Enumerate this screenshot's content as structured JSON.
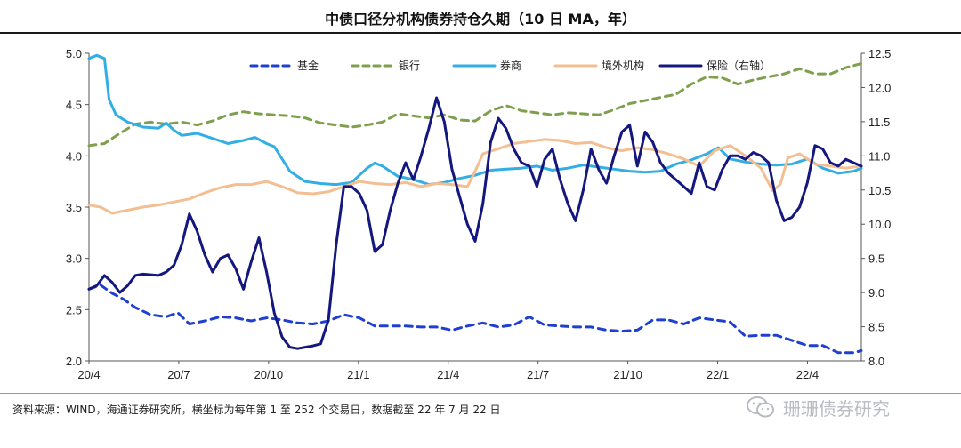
{
  "page": {
    "title": "中债口径分机构债券持仓久期（10 日 MA，年）",
    "source": "资料来源：WIND，海通证券研究所，横坐标为每年第 1 至 252 个交易日，数据截至 22 年 7 月 22 日",
    "watermark": "珊珊债券研究",
    "watermark_icon": "wechat-icon"
  },
  "chart_data": {
    "type": "line",
    "title": "中债口径分机构债券持仓久期（10 日 MA，年）",
    "xlabel": "",
    "ylabel": "",
    "x_ticks": [
      "20/4",
      "20/7",
      "20/10",
      "21/1",
      "21/4",
      "21/7",
      "21/10",
      "22/1",
      "22/4"
    ],
    "x_range": [
      0,
      100
    ],
    "ylim": [
      2.0,
      5.0
    ],
    "y_ticks": [
      "5.0",
      "4.5",
      "4.0",
      "3.5",
      "3.0",
      "2.5",
      "2.0"
    ],
    "y2lim": [
      8.0,
      12.5
    ],
    "y2_ticks": [
      "12.5",
      "12.0",
      "11.5",
      "11.0",
      "10.5",
      "10.0",
      "9.5",
      "9.0",
      "8.5",
      "8.0"
    ],
    "grid": false,
    "legend_position": "top",
    "series": [
      {
        "name": "基金",
        "axis": "left",
        "color": "#1f3fd1",
        "style": "dashed",
        "points": [
          [
            0,
            2.7
          ],
          [
            1.5,
            2.74
          ],
          [
            3,
            2.66
          ],
          [
            4.5,
            2.6
          ],
          [
            6,
            2.52
          ],
          [
            8,
            2.45
          ],
          [
            10,
            2.43
          ],
          [
            11.5,
            2.47
          ],
          [
            13,
            2.36
          ],
          [
            15,
            2.39
          ],
          [
            17,
            2.43
          ],
          [
            19,
            2.42
          ],
          [
            21,
            2.39
          ],
          [
            23,
            2.42
          ],
          [
            25,
            2.4
          ],
          [
            27,
            2.37
          ],
          [
            29,
            2.36
          ],
          [
            31,
            2.39
          ],
          [
            33,
            2.45
          ],
          [
            35,
            2.42
          ],
          [
            37,
            2.34
          ],
          [
            39,
            2.34
          ],
          [
            41,
            2.34
          ],
          [
            43,
            2.33
          ],
          [
            45,
            2.33
          ],
          [
            47,
            2.3
          ],
          [
            49,
            2.34
          ],
          [
            51,
            2.37
          ],
          [
            53,
            2.33
          ],
          [
            55,
            2.35
          ],
          [
            57,
            2.43
          ],
          [
            59,
            2.35
          ],
          [
            61,
            2.34
          ],
          [
            63,
            2.33
          ],
          [
            65,
            2.33
          ],
          [
            67,
            2.3
          ],
          [
            69,
            2.29
          ],
          [
            71,
            2.3
          ],
          [
            73,
            2.4
          ],
          [
            75,
            2.4
          ],
          [
            77,
            2.36
          ],
          [
            79,
            2.42
          ],
          [
            81,
            2.4
          ],
          [
            83,
            2.38
          ],
          [
            85,
            2.24
          ],
          [
            87,
            2.25
          ],
          [
            89,
            2.25
          ],
          [
            91,
            2.2
          ],
          [
            93,
            2.15
          ],
          [
            95,
            2.15
          ],
          [
            97,
            2.08
          ],
          [
            99,
            2.08
          ],
          [
            100,
            2.1
          ]
        ]
      },
      {
        "name": "银行",
        "axis": "left",
        "color": "#7ea04d",
        "style": "dashed",
        "points": [
          [
            0,
            4.1
          ],
          [
            2,
            4.12
          ],
          [
            4,
            4.22
          ],
          [
            6,
            4.31
          ],
          [
            8,
            4.33
          ],
          [
            10,
            4.31
          ],
          [
            12,
            4.33
          ],
          [
            14,
            4.3
          ],
          [
            16,
            4.34
          ],
          [
            18,
            4.4
          ],
          [
            20,
            4.43
          ],
          [
            22,
            4.41
          ],
          [
            24,
            4.4
          ],
          [
            26,
            4.39
          ],
          [
            28,
            4.37
          ],
          [
            30,
            4.32
          ],
          [
            32,
            4.3
          ],
          [
            34,
            4.28
          ],
          [
            36,
            4.3
          ],
          [
            38,
            4.33
          ],
          [
            40,
            4.41
          ],
          [
            42,
            4.39
          ],
          [
            44,
            4.37
          ],
          [
            46,
            4.4
          ],
          [
            48,
            4.35
          ],
          [
            50,
            4.34
          ],
          [
            52,
            4.44
          ],
          [
            54,
            4.49
          ],
          [
            56,
            4.44
          ],
          [
            58,
            4.42
          ],
          [
            60,
            4.4
          ],
          [
            62,
            4.42
          ],
          [
            64,
            4.41
          ],
          [
            66,
            4.4
          ],
          [
            68,
            4.45
          ],
          [
            70,
            4.51
          ],
          [
            72,
            4.54
          ],
          [
            74,
            4.57
          ],
          [
            76,
            4.6
          ],
          [
            78,
            4.7
          ],
          [
            80,
            4.77
          ],
          [
            82,
            4.76
          ],
          [
            84,
            4.7
          ],
          [
            86,
            4.74
          ],
          [
            88,
            4.77
          ],
          [
            90,
            4.8
          ],
          [
            92,
            4.85
          ],
          [
            94,
            4.8
          ],
          [
            96,
            4.8
          ],
          [
            98,
            4.86
          ],
          [
            100,
            4.9
          ]
        ]
      },
      {
        "name": "券商",
        "axis": "left",
        "color": "#33aee4",
        "style": "solid",
        "points": [
          [
            0,
            4.95
          ],
          [
            1,
            4.98
          ],
          [
            2,
            4.95
          ],
          [
            2.6,
            4.55
          ],
          [
            3.5,
            4.4
          ],
          [
            5,
            4.33
          ],
          [
            7,
            4.28
          ],
          [
            9,
            4.27
          ],
          [
            10,
            4.32
          ],
          [
            11,
            4.25
          ],
          [
            12,
            4.2
          ],
          [
            14,
            4.22
          ],
          [
            16,
            4.17
          ],
          [
            18,
            4.12
          ],
          [
            20,
            4.15
          ],
          [
            21.5,
            4.18
          ],
          [
            23,
            4.12
          ],
          [
            24,
            4.09
          ],
          [
            26,
            3.85
          ],
          [
            28,
            3.75
          ],
          [
            30,
            3.73
          ],
          [
            32,
            3.72
          ],
          [
            34,
            3.74
          ],
          [
            36,
            3.88
          ],
          [
            37,
            3.93
          ],
          [
            38,
            3.9
          ],
          [
            40,
            3.8
          ],
          [
            42,
            3.77
          ],
          [
            44,
            3.72
          ],
          [
            46,
            3.74
          ],
          [
            48,
            3.78
          ],
          [
            50,
            3.81
          ],
          [
            52,
            3.86
          ],
          [
            54,
            3.87
          ],
          [
            56,
            3.88
          ],
          [
            58,
            3.9
          ],
          [
            60,
            3.86
          ],
          [
            62,
            3.88
          ],
          [
            64,
            3.91
          ],
          [
            66,
            3.89
          ],
          [
            68,
            3.87
          ],
          [
            70,
            3.85
          ],
          [
            72,
            3.84
          ],
          [
            74,
            3.85
          ],
          [
            76,
            3.92
          ],
          [
            78,
            3.96
          ],
          [
            80,
            4.02
          ],
          [
            81.5,
            4.08
          ],
          [
            83,
            3.97
          ],
          [
            85,
            3.94
          ],
          [
            87,
            3.92
          ],
          [
            89,
            3.91
          ],
          [
            91,
            3.92
          ],
          [
            93,
            3.97
          ],
          [
            95,
            3.88
          ],
          [
            97,
            3.83
          ],
          [
            99,
            3.85
          ],
          [
            100,
            3.88
          ]
        ]
      },
      {
        "name": "境外机构",
        "axis": "left",
        "color": "#f3bf92",
        "style": "solid",
        "points": [
          [
            0,
            3.52
          ],
          [
            1.5,
            3.5
          ],
          [
            3,
            3.44
          ],
          [
            5,
            3.47
          ],
          [
            7,
            3.5
          ],
          [
            9,
            3.52
          ],
          [
            11,
            3.55
          ],
          [
            13,
            3.58
          ],
          [
            15,
            3.64
          ],
          [
            17,
            3.69
          ],
          [
            19,
            3.72
          ],
          [
            21,
            3.72
          ],
          [
            23,
            3.75
          ],
          [
            25,
            3.7
          ],
          [
            27,
            3.64
          ],
          [
            29,
            3.63
          ],
          [
            31,
            3.65
          ],
          [
            33,
            3.7
          ],
          [
            35,
            3.75
          ],
          [
            37,
            3.73
          ],
          [
            39,
            3.72
          ],
          [
            41,
            3.74
          ],
          [
            43,
            3.7
          ],
          [
            45,
            3.73
          ],
          [
            47,
            3.72
          ],
          [
            49,
            3.7
          ],
          [
            50,
            3.85
          ],
          [
            51,
            4.02
          ],
          [
            53,
            4.07
          ],
          [
            55,
            4.12
          ],
          [
            57,
            4.14
          ],
          [
            59,
            4.16
          ],
          [
            61,
            4.15
          ],
          [
            63,
            4.12
          ],
          [
            65,
            4.13
          ],
          [
            67,
            4.08
          ],
          [
            69,
            4.05
          ],
          [
            71,
            4.08
          ],
          [
            73,
            4.06
          ],
          [
            75,
            4.02
          ],
          [
            77,
            3.97
          ],
          [
            79,
            3.9
          ],
          [
            81,
            4.05
          ],
          [
            83,
            4.1
          ],
          [
            85,
            4.0
          ],
          [
            87,
            3.88
          ],
          [
            88.5,
            3.66
          ],
          [
            89.5,
            3.72
          ],
          [
            90.5,
            3.98
          ],
          [
            92,
            4.02
          ],
          [
            94,
            3.92
          ],
          [
            96,
            3.9
          ],
          [
            98,
            3.88
          ],
          [
            100,
            3.9
          ]
        ]
      },
      {
        "name": "保险（右轴）",
        "axis": "right",
        "color": "#14177d",
        "style": "solid",
        "points": [
          [
            0,
            9.05
          ],
          [
            1,
            9.1
          ],
          [
            2,
            9.25
          ],
          [
            3,
            9.15
          ],
          [
            4,
            9.0
          ],
          [
            5,
            9.1
          ],
          [
            6,
            9.25
          ],
          [
            7,
            9.27
          ],
          [
            8,
            9.26
          ],
          [
            9,
            9.25
          ],
          [
            10,
            9.3
          ],
          [
            11,
            9.4
          ],
          [
            12,
            9.7
          ],
          [
            13,
            10.15
          ],
          [
            14,
            9.9
          ],
          [
            15,
            9.55
          ],
          [
            16,
            9.3
          ],
          [
            17,
            9.5
          ],
          [
            18,
            9.55
          ],
          [
            19,
            9.35
          ],
          [
            20,
            9.05
          ],
          [
            21,
            9.45
          ],
          [
            22,
            9.8
          ],
          [
            23,
            9.3
          ],
          [
            24,
            8.7
          ],
          [
            25,
            8.35
          ],
          [
            26,
            8.2
          ],
          [
            27,
            8.18
          ],
          [
            28,
            8.2
          ],
          [
            29,
            8.22
          ],
          [
            30,
            8.25
          ],
          [
            31,
            8.6
          ],
          [
            32,
            9.7
          ],
          [
            33,
            10.55
          ],
          [
            34,
            10.55
          ],
          [
            35,
            10.45
          ],
          [
            36,
            10.2
          ],
          [
            37,
            9.6
          ],
          [
            38,
            9.7
          ],
          [
            39,
            10.2
          ],
          [
            40,
            10.6
          ],
          [
            41,
            10.9
          ],
          [
            42,
            10.65
          ],
          [
            43,
            11.0
          ],
          [
            44,
            11.4
          ],
          [
            45,
            11.85
          ],
          [
            46,
            11.5
          ],
          [
            47,
            10.8
          ],
          [
            48,
            10.4
          ],
          [
            49,
            10.0
          ],
          [
            50,
            9.75
          ],
          [
            51,
            10.3
          ],
          [
            52,
            11.2
          ],
          [
            53,
            11.55
          ],
          [
            54,
            11.4
          ],
          [
            55,
            11.1
          ],
          [
            56,
            10.9
          ],
          [
            57,
            10.85
          ],
          [
            58,
            10.55
          ],
          [
            59,
            10.95
          ],
          [
            60,
            11.1
          ],
          [
            61,
            10.65
          ],
          [
            62,
            10.3
          ],
          [
            63,
            10.05
          ],
          [
            64,
            10.5
          ],
          [
            65,
            11.1
          ],
          [
            66,
            10.8
          ],
          [
            67,
            10.6
          ],
          [
            68,
            11.0
          ],
          [
            69,
            11.35
          ],
          [
            70,
            11.45
          ],
          [
            71,
            10.85
          ],
          [
            72,
            11.35
          ],
          [
            73,
            11.2
          ],
          [
            74,
            10.9
          ],
          [
            75,
            10.75
          ],
          [
            76,
            10.65
          ],
          [
            77,
            10.55
          ],
          [
            78,
            10.45
          ],
          [
            79,
            10.9
          ],
          [
            80,
            10.55
          ],
          [
            81,
            10.5
          ],
          [
            82,
            10.8
          ],
          [
            83,
            11.0
          ],
          [
            84,
            11.0
          ],
          [
            85,
            10.95
          ],
          [
            86,
            11.05
          ],
          [
            87,
            11.0
          ],
          [
            88,
            10.9
          ],
          [
            89,
            10.35
          ],
          [
            90,
            10.05
          ],
          [
            91,
            10.1
          ],
          [
            92,
            10.25
          ],
          [
            93,
            10.6
          ],
          [
            94,
            11.15
          ],
          [
            95,
            11.1
          ],
          [
            96,
            10.9
          ],
          [
            97,
            10.85
          ],
          [
            98,
            10.95
          ],
          [
            100,
            10.85
          ]
        ]
      }
    ]
  }
}
